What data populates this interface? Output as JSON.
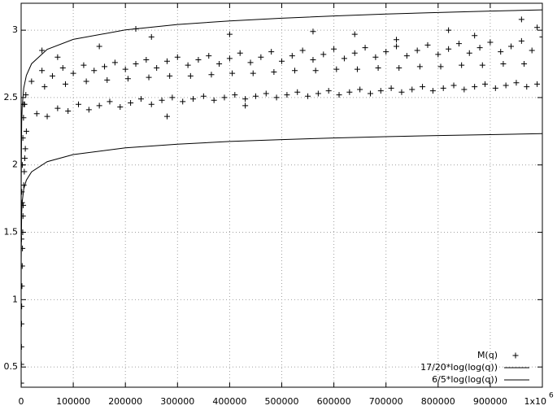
{
  "chart_data": {
    "type": "scatter",
    "xlim": [
      0,
      1000000
    ],
    "ylim": [
      0.35,
      3.2
    ],
    "xticks": [
      0,
      100000,
      200000,
      300000,
      400000,
      500000,
      600000,
      700000,
      800000,
      900000,
      {
        "value": 1000000,
        "label": "1x10",
        "exponent": "6"
      }
    ],
    "yticks": [
      0.5,
      1,
      1.5,
      2,
      2.5,
      3
    ],
    "grid": true,
    "legend": "bottom-right",
    "series": [
      {
        "name": "M(q)",
        "style": "points",
        "color": "#000000",
        "x": [
          10000,
          30000,
          50000,
          70000,
          90000,
          110000,
          130000,
          150000,
          170000,
          190000,
          210000,
          230000,
          250000,
          270000,
          290000,
          310000,
          330000,
          350000,
          370000,
          390000,
          410000,
          430000,
          450000,
          470000,
          490000,
          510000,
          530000,
          550000,
          570000,
          590000,
          610000,
          630000,
          650000,
          670000,
          690000,
          710000,
          730000,
          750000,
          770000,
          790000,
          810000,
          830000,
          850000,
          870000,
          890000,
          910000,
          930000,
          950000,
          970000,
          990000,
          20000,
          40000,
          60000,
          80000,
          100000,
          120000,
          140000,
          160000,
          180000,
          200000,
          220000,
          240000,
          260000,
          280000,
          300000,
          320000,
          340000,
          360000,
          380000,
          400000,
          420000,
          440000,
          460000,
          480000,
          500000,
          520000,
          540000,
          560000,
          580000,
          600000,
          620000,
          640000,
          660000,
          680000,
          700000,
          720000,
          740000,
          760000,
          780000,
          800000,
          820000,
          840000,
          860000,
          880000,
          900000,
          920000,
          940000,
          960000,
          980000,
          1000000,
          5000,
          45000,
          85000,
          125000,
          165000,
          205000,
          245000,
          285000,
          325000,
          365000,
          405000,
          445000,
          485000,
          525000,
          565000,
          605000,
          645000,
          685000,
          725000,
          765000,
          805000,
          845000,
          885000,
          925000,
          965000,
          40000,
          70000,
          150000,
          220000,
          250000,
          400000,
          560000,
          640000,
          720000,
          820000,
          870000,
          960000,
          990000,
          280000,
          430000,
          200,
          400,
          600,
          800,
          1000,
          1500,
          2000,
          2500,
          3000,
          3500,
          4000,
          5000,
          6000,
          7000,
          8000,
          1200,
          2200,
          3300,
          4500,
          6500,
          9000,
          700,
          1800
        ],
        "values": [
          2.25,
          2.38,
          2.36,
          2.42,
          2.4,
          2.45,
          2.41,
          2.44,
          2.47,
          2.43,
          2.46,
          2.49,
          2.45,
          2.48,
          2.5,
          2.47,
          2.49,
          2.51,
          2.48,
          2.5,
          2.52,
          2.49,
          2.51,
          2.53,
          2.5,
          2.52,
          2.54,
          2.51,
          2.53,
          2.55,
          2.52,
          2.54,
          2.56,
          2.53,
          2.55,
          2.57,
          2.54,
          2.56,
          2.58,
          2.55,
          2.57,
          2.59,
          2.56,
          2.58,
          2.6,
          2.57,
          2.59,
          2.61,
          2.58,
          2.6,
          2.62,
          2.7,
          2.66,
          2.72,
          2.68,
          2.74,
          2.7,
          2.73,
          2.76,
          2.71,
          2.75,
          2.78,
          2.72,
          2.77,
          2.8,
          2.74,
          2.78,
          2.81,
          2.75,
          2.79,
          2.83,
          2.76,
          2.8,
          2.84,
          2.77,
          2.81,
          2.85,
          2.78,
          2.82,
          2.86,
          2.79,
          2.83,
          2.87,
          2.8,
          2.84,
          2.88,
          2.81,
          2.85,
          2.89,
          2.82,
          2.86,
          2.9,
          2.83,
          2.87,
          2.91,
          2.84,
          2.88,
          2.92,
          2.85,
          2.95,
          2.45,
          2.58,
          2.6,
          2.62,
          2.63,
          2.64,
          2.65,
          2.66,
          2.66,
          2.67,
          2.68,
          2.68,
          2.69,
          2.7,
          2.7,
          2.71,
          2.71,
          2.72,
          2.72,
          2.73,
          2.73,
          2.74,
          2.74,
          2.75,
          2.75,
          2.85,
          2.8,
          2.88,
          3.01,
          2.95,
          2.97,
          2.99,
          2.97,
          2.93,
          3.0,
          2.96,
          3.08,
          3.02,
          2.36,
          2.44,
          0.38,
          0.52,
          0.65,
          0.82,
          0.95,
          1.1,
          1.25,
          1.38,
          1.5,
          1.62,
          1.7,
          1.85,
          1.95,
          2.05,
          2.12,
          1.8,
          2.0,
          2.2,
          2.35,
          2.45,
          2.52,
          1.45,
          1.72
        ]
      },
      {
        "name": "17/20*log(log(q))",
        "style": "lines",
        "color": "#000000",
        "x": [
          5,
          10,
          100,
          1000,
          2000,
          5000,
          10000,
          20000,
          50000,
          100000,
          200000,
          300000,
          400000,
          500000,
          600000,
          700000,
          800000,
          900000,
          1000000
        ],
        "values": [
          0.404,
          0.709,
          1.298,
          1.643,
          1.724,
          1.821,
          1.887,
          1.949,
          2.024,
          2.077,
          2.127,
          2.154,
          2.174,
          2.188,
          2.2,
          2.21,
          2.218,
          2.225,
          2.232
        ]
      },
      {
        "name": "6/5*log(log(q))",
        "style": "lines",
        "color": "#000000",
        "x": [
          5,
          10,
          100,
          1000,
          2000,
          5000,
          10000,
          20000,
          50000,
          100000,
          200000,
          300000,
          400000,
          500000,
          600000,
          700000,
          800000,
          900000,
          1000000
        ],
        "values": [
          0.571,
          1.001,
          1.833,
          2.319,
          2.434,
          2.571,
          2.664,
          2.751,
          2.858,
          2.932,
          3.002,
          3.042,
          3.069,
          3.089,
          3.106,
          3.12,
          3.131,
          3.142,
          3.151
        ]
      }
    ]
  }
}
